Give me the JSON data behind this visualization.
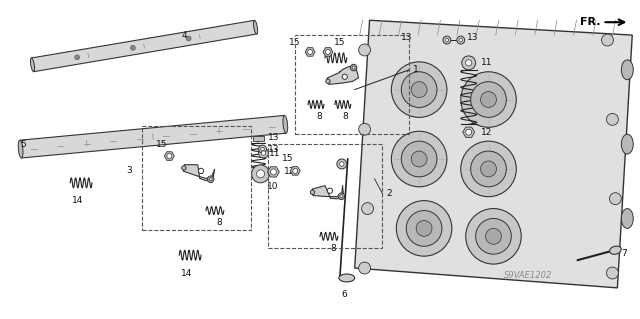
{
  "bg_color": "#ffffff",
  "fig_width": 6.4,
  "fig_height": 3.19,
  "dpi": 100,
  "watermark": "S9VAE1202",
  "fr_label": "FR.",
  "font_size_label": 6.5,
  "font_size_watermark": 6,
  "font_size_fr": 8,
  "label_color": "#111111",
  "line_color": "#222222",
  "part_color": "#dddddd",
  "part_edge": "#333333"
}
